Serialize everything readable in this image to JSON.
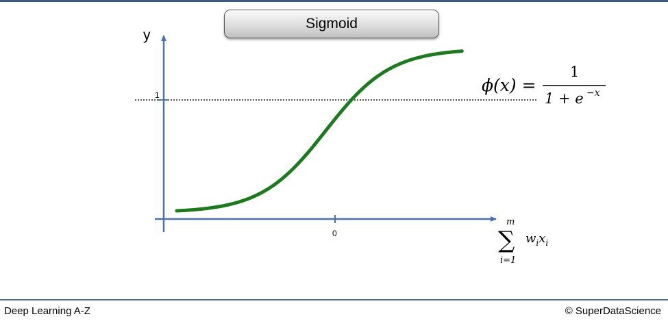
{
  "chart_data": {
    "type": "line",
    "title": "Sigmoid",
    "ylabel": "y",
    "xlabel_math": {
      "sum_sign": "∑",
      "upper_limit": "m",
      "lower_limit": "i=1",
      "term_w": "w",
      "sub_i": "i",
      "term_x": "x"
    },
    "x_ticks": [
      {
        "value": 0,
        "label": "0"
      }
    ],
    "y_ticks": [
      {
        "value": 1,
        "label": "1"
      }
    ],
    "reference_line": {
      "y": 1,
      "style": "dotted"
    },
    "xlim": [
      -5,
      5.25
    ],
    "ylim": [
      -0.04,
      1.08
    ],
    "x_range": [
      -4.6,
      4.2
    ],
    "series": [
      {
        "function": "sigmoid",
        "color": "#1e7a1e"
      }
    ],
    "formula": {
      "lhs": "ϕ(x) =",
      "numerator": "1",
      "denominator_base": "1 + e",
      "denominator_exp": "−x"
    },
    "colors": {
      "axis": "#4a72b0",
      "curve": "#1e7a1e",
      "reference": "#555555"
    }
  },
  "footer": {
    "left": "Deep Learning A-Z",
    "right": "© SuperDataScience"
  }
}
